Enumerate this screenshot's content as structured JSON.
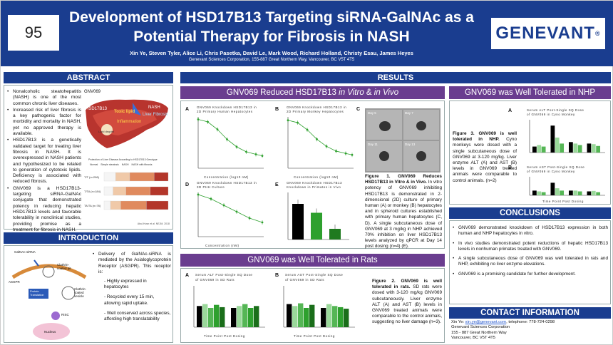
{
  "header": {
    "abstract_number": "95",
    "title_line1": "Development of HSD17B13 Targeting siRNA-GalNAc as a",
    "title_line2": "Potential Therapy for Fibrosis in NASH",
    "authors": "Xin Ye, Steven Tyler, Alice Li, Chris Pasetka, David Le, Mark Wood, Richard Holland, Christy Esau, James Heyes",
    "affiliation": "Genevant Sciences Corporation, 155-887 Great Northern Way, Vancouver, BC V5T 4T5",
    "logo_text": "GENEVANT",
    "logo_mark": "®"
  },
  "abstract": {
    "heading": "ABSTRACT",
    "bullets": [
      "Nonalcoholic steatohepatitis (NASH) is one of the most common chronic liver diseases.",
      "Increased risk of liver fibrosis is a key pathogenic factor for morbidity and mortality in NASH, yet no approved therapy is available.",
      "HSD17B13 is a genetically validated target for treating liver fibrosis in NASH. It is overexpressed in NASH patients and hypothesized to be related to generation of cytotoxic lipids. Deficiency is associated with reduced fibrosis.",
      "GNV069 is a HSD17B13-targeting siRNA-GalNAc conjugate that demonstrated potency in reducing hepatic HSD17B13 levels and favorable tolerability in nonclinical studies, providing promise as a treatment for fibrosis in NASH."
    ],
    "figure": {
      "label": "GNV069",
      "liver_labels": [
        "HSD17B13",
        "Toxic lipid",
        "NASH",
        "Liver Fibrosis",
        "Inflammation",
        "Lipid droplet"
      ],
      "bar_title": "Protection of Liver Disease According to HSD17B13 Genotype",
      "legend": [
        "Normal",
        "Simple steatosis",
        "NASH",
        "NASH with fibrosis"
      ],
      "rows": [
        {
          "label": "T/T (n=298)",
          "values": [
            18,
            22,
            38,
            22
          ]
        },
        {
          "label": "T/TA (n=184)",
          "values": [
            14,
            20,
            38,
            28
          ]
        },
        {
          "label": "TA/TA (n=76)",
          "values": [
            10,
            16,
            40,
            34
          ]
        }
      ],
      "citation": "Abul-Husn et al. NEJM, 2018"
    }
  },
  "introduction": {
    "heading": "INTRODUCTION",
    "diagram_labels": [
      "GalNAc-siRNA",
      "ASGPR",
      "Clathrin-coated pit",
      "Clathrin-coated vesicle",
      "Protein Translation",
      "RISC",
      "Nucleus"
    ],
    "bullets": [
      "Delivery of GalNAc-siRNA is mediated by the Asialoglycoprotein Receptor (ASGPR). This receptor is:"
    ],
    "sub_bullets": [
      "- Highly expressed in hepatocytes",
      "- Recycled every 15 min, allowing rapid uptake.",
      "- Well conserved across species, affording high translatability"
    ]
  },
  "results": {
    "heading": "RESULTS",
    "invitro": {
      "heading_plain": "GNV069 Reduced HSD17B13 ",
      "heading_italic": "in Vitro",
      "heading_amp": " & ",
      "heading_italic2": "in Vivo",
      "panels": [
        {
          "letter": "A",
          "title": "GNV069 Knockdown HSD17B13 in",
          "title2": "2D Primary Human Hepatocytes",
          "xlabel": "Concentration (log10 nM)",
          "ylabel": "Relative HSD17B13 mRNA"
        },
        {
          "letter": "B",
          "title": "GNV069 Knockdown HSD17B13 in",
          "title2": "2D Primary Monkey Hepatocytes",
          "xlabel": "Concentration (log10 nM)",
          "ylabel": "Relative HSD17B13 mRNA"
        },
        {
          "letter": "C",
          "title": "",
          "title2": "",
          "xlabel": "",
          "ylabel": ""
        },
        {
          "letter": "D",
          "title": "GNV069 Knockdown HSD17B13 in",
          "title2": "3D PHH Culture",
          "xlabel": "Concentration (nM)",
          "ylabel": "Relative HSD17B13 mRNA"
        },
        {
          "letter": "E",
          "title": "GNV069 Knockdown HSD17B13",
          "title2": "Knockdown in Primates in Vivo",
          "xlabel": "",
          "ylabel": "HSD17B13 mRNA"
        }
      ],
      "spheroid_days": [
        "Day 5",
        "Day 7",
        "Day 11",
        "Day 13"
      ],
      "caption_bold": "Figure 1. GNV069 Reduces HSD17B13 in Vitro & in Vivo.",
      "caption": "In vitro potency of GNV069 inhibiting HSD17B13 is demonstrated in 2-dimensional (2D) culture of primary human (A) or monkey (B) hepatocytes and in spheroid cultures established with primary human hepatocytes (C, D). A single subcutaneous dose of GNV069 at 3 mg/kg in NHP achieved 70% inhibition on liver HSD17B13 levels analyzed by qPCR at Day 14 post dosing (n=4) (E)."
    },
    "rats": {
      "heading": "GNV069 was Well Tolerated in Rats",
      "panel_a_title": "Serum ALT Post-Single SQ Dose",
      "panel_a_title2": "of GNV069 in SD Rats",
      "panel_b_title": "Serum AST Post-Single SQ Dose",
      "panel_b_title2": "of GNV069 in SD Rats",
      "xlabel": "Time Point Post Dosing",
      "caption_bold": "Figure 2. GNV069 is well tolerated in rats.",
      "caption": "SD rats were dosed with 3-120 mg/kg GNV069 subcutaneously. Liver enzyme ALT (A) and AST (B) levels in GNV069 treated animals were comparable to the control animals, suggesting no liver damage (n=3)."
    },
    "nhp": {
      "heading": "GNV069 was Well Tolerated in NHP",
      "panel_a_title": "Serum ALT Post-Single SQ Dose",
      "panel_a_title2": "of GNV069 in Cyno Monkey",
      "panel_b_title": "Serum AST Post-Single SQ Dose",
      "panel_b_title2": "of GNV069 in Cyno Monkey",
      "xlabel": "Time Point Post Dosing",
      "caption_bold": "Figure 3. GNV069 is well tolerated in NHP.",
      "caption": "Cyno monkeys were dosed with a single subcutaneous dose of GNV069 at 3-120 mg/kg. Liver enzyme ALT (A) and AST (B) levels in GNV069 treated animals were comparable to control animals. (n=2)"
    }
  },
  "conclusions": {
    "heading": "CONCLUSIONS",
    "bullets": [
      "GNV069 demonstrated knockdown of HSD17B13 expression in both human and NHP hepatocytes in vitro.",
      "In vivo studies demonstrated potent reductions of hepatic HSD17B13 levels in nonhuman primates treated with GNV069.",
      "A single subcutaneous dose of GNV069 was well tolerated in rats and NHP, exhibiting no liver enzyme elevations.",
      "GNV069 is a promising candidate for further development."
    ]
  },
  "contact": {
    "heading": "CONTACT INFORMATION",
    "line1_prefix": "Xin Ye: ",
    "email": "xin.ye@genevant.com",
    "line1_suffix": ", telephone: 778-724-0298",
    "line2": "Genevant Sciences Corporation",
    "line3": "155 - 887 Great Northern Way",
    "line4": "Vancouver, BC V5T 4T5"
  },
  "colors": {
    "navy": "#1a3d8f",
    "purple": "#6a3d8f",
    "green": "#2ea02e",
    "black": "#000000"
  }
}
